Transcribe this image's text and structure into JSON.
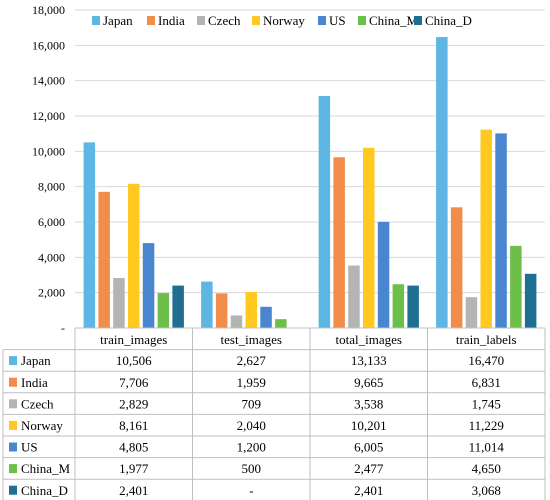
{
  "chart_data": {
    "type": "bar",
    "categories": [
      "train_images",
      "test_images",
      "total_images",
      "train_labels"
    ],
    "series": [
      {
        "name": "Japan",
        "color": "#5eb6e4",
        "values": [
          10506,
          2627,
          13133,
          16470
        ],
        "labels": [
          "10,506",
          "2,627",
          "13,133",
          "16,470"
        ]
      },
      {
        "name": "India",
        "color": "#f28c4a",
        "values": [
          7706,
          1959,
          9665,
          6831
        ],
        "labels": [
          "7,706",
          "1,959",
          "9,665",
          "6,831"
        ]
      },
      {
        "name": "Czech",
        "color": "#b4b4b4",
        "values": [
          2829,
          709,
          3538,
          1745
        ],
        "labels": [
          "2,829",
          "709",
          "3,538",
          "1,745"
        ]
      },
      {
        "name": "Norway",
        "color": "#ffc91f",
        "values": [
          8161,
          2040,
          10201,
          11229
        ],
        "labels": [
          "8,161",
          "2,040",
          "10,201",
          "11,229"
        ]
      },
      {
        "name": "US",
        "color": "#4a86cf",
        "values": [
          4805,
          1200,
          6005,
          11014
        ],
        "labels": [
          "4,805",
          "1,200",
          "6,005",
          "11,014"
        ]
      },
      {
        "name": "China_M",
        "color": "#6cc04a",
        "values": [
          1977,
          500,
          2477,
          4650
        ],
        "labels": [
          "1,977",
          "500",
          "2,477",
          "4,650"
        ]
      },
      {
        "name": "China_D",
        "color": "#1f6f93",
        "values": [
          2401,
          null,
          2401,
          3068
        ],
        "labels": [
          "2,401",
          "-",
          "2,401",
          "3,068"
        ]
      }
    ],
    "y_ticks": [
      0,
      2000,
      4000,
      6000,
      8000,
      10000,
      12000,
      14000,
      16000,
      18000
    ],
    "y_tick_labels": [
      "-",
      "2,000",
      "4,000",
      "6,000",
      "8,000",
      "10,000",
      "12,000",
      "14,000",
      "16,000",
      "18,000"
    ],
    "ylim": [
      0,
      18000
    ],
    "grid": true,
    "legend_position": "top",
    "data_table": true
  }
}
